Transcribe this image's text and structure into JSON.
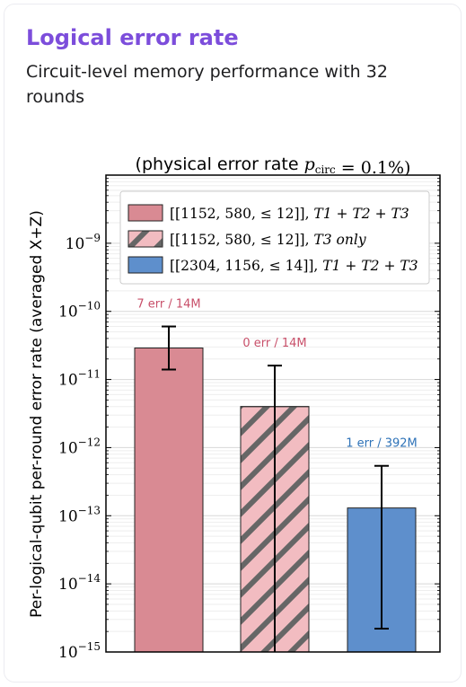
{
  "card": {
    "title": "Logical error rate",
    "subtitle": "Circuit-level memory performance with 32 rounds"
  },
  "chart_data": {
    "type": "bar",
    "title_parts": [
      {
        "text": "(physical error rate ",
        "font": "sans"
      },
      {
        "text": "p",
        "font": "math",
        "italic": true
      },
      {
        "text": "circ",
        "font": "math",
        "sub": true
      },
      {
        "text": " = 0.1%)",
        "font": "math"
      }
    ],
    "ylabel": "Per-logical-qubit per-round error rate (averaged X+Z)",
    "yscale": "log",
    "ylim": [
      1e-15,
      1e-08
    ],
    "yticks": [
      {
        "value": 1e-15,
        "exp": "−15"
      },
      {
        "value": 1e-14,
        "exp": "−14"
      },
      {
        "value": 1e-13,
        "exp": "−13"
      },
      {
        "value": 1e-12,
        "exp": "−12"
      },
      {
        "value": 1e-11,
        "exp": "−11"
      },
      {
        "value": 1e-10,
        "exp": "−10"
      },
      {
        "value": 1e-09,
        "exp": "−9"
      }
    ],
    "ytick_base": "10",
    "grid": true,
    "legend_position": "top-left",
    "series": [
      {
        "code": "[[1152, 580, ≤ 12]]",
        "terms": "T1 + T2 + T3",
        "value": 2.9e-11,
        "err_low": 1.4e-11,
        "err_high": 6e-11,
        "bar_label": "7 err / 14M",
        "label_color": "#c8506a",
        "fill": "#d98a93",
        "hatch": false
      },
      {
        "code": "[[1152, 580, ≤ 12]]",
        "terms": "T3 only",
        "value": 4e-12,
        "err_low": 1e-15,
        "err_high": 1.6e-11,
        "bar_label": "0 err / 14M",
        "label_color": "#c8506a",
        "fill": "#f2bcc1",
        "hatch": true
      },
      {
        "code": "[[2304, 1156, ≤ 14]]",
        "terms": "T1 + T2 + T3",
        "value": 1.3e-13,
        "err_low": 2.2e-15,
        "err_high": 5.4e-13,
        "bar_label": "1 err / 392M",
        "label_color": "#2f73b8",
        "fill": "#5e8fcc",
        "hatch": false
      }
    ]
  }
}
